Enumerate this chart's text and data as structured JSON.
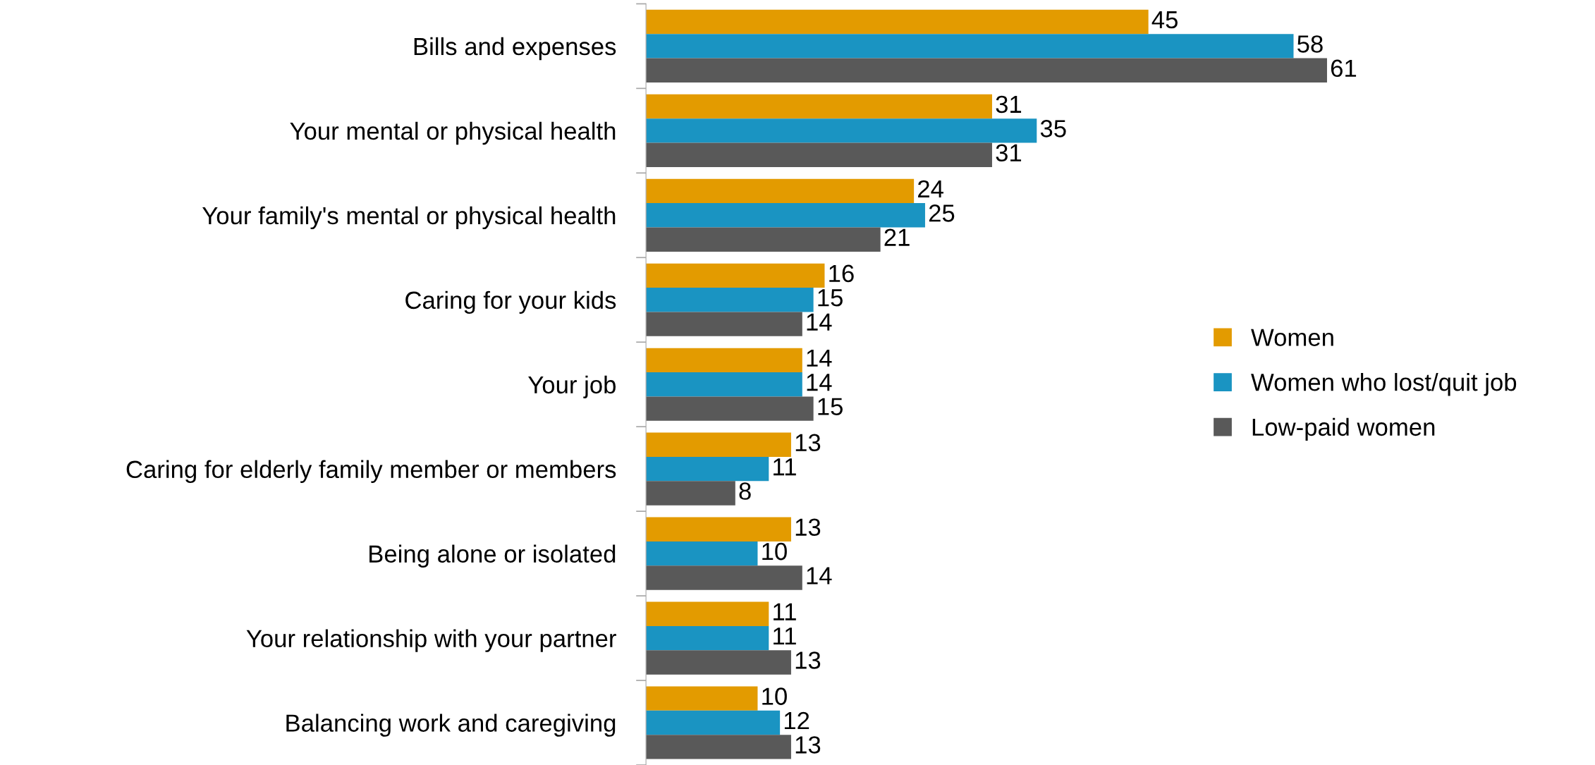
{
  "chart_data": {
    "type": "bar",
    "orientation": "horizontal",
    "categories": [
      "Bills and expenses",
      "Your mental or physical health",
      "Your family's mental or physical health",
      "Caring for your kids",
      "Your job",
      "Caring for elderly family member or members",
      "Being alone or isolated",
      "Your relationship with your partner",
      "Balancing work and caregiving"
    ],
    "series": [
      {
        "name": "Women",
        "color": "#e39b00",
        "values": [
          45,
          31,
          24,
          16,
          14,
          13,
          13,
          11,
          10
        ]
      },
      {
        "name": "Women who lost/quit job",
        "color": "#1a94c2",
        "values": [
          58,
          35,
          25,
          15,
          14,
          11,
          10,
          11,
          12
        ]
      },
      {
        "name": "Low-paid women",
        "color": "#595959",
        "values": [
          61,
          31,
          21,
          14,
          15,
          8,
          14,
          13,
          13
        ]
      }
    ],
    "data_labels": true,
    "legend": "right",
    "grid": false
  }
}
